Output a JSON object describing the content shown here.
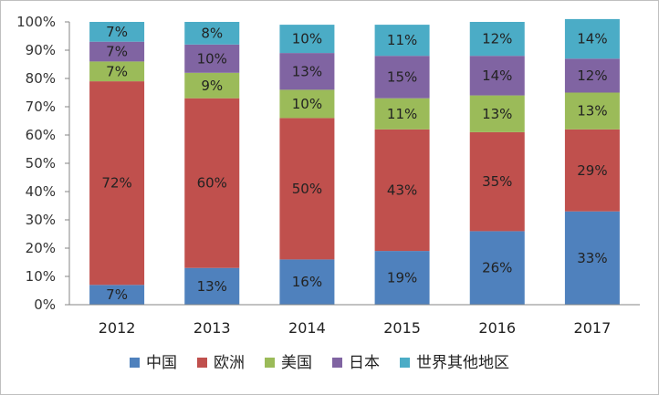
{
  "chart_data": {
    "type": "bar",
    "stacked": true,
    "percent": true,
    "categories": [
      "2012",
      "2013",
      "2014",
      "2015",
      "2016",
      "2017"
    ],
    "series": [
      {
        "name": "中国",
        "color": "#4f81bd",
        "values": [
          7,
          13,
          16,
          19,
          26,
          33
        ]
      },
      {
        "name": "欧洲",
        "color": "#c0504d",
        "values": [
          72,
          60,
          50,
          43,
          35,
          29
        ]
      },
      {
        "name": "美国",
        "color": "#9bbb59",
        "values": [
          7,
          9,
          10,
          11,
          13,
          13
        ]
      },
      {
        "name": "日本",
        "color": "#8064a2",
        "values": [
          7,
          10,
          13,
          15,
          14,
          12
        ]
      },
      {
        "name": "世界其他地区",
        "color": "#4bacc6",
        "values": [
          7,
          8,
          10,
          11,
          12,
          14
        ]
      }
    ],
    "y_ticks": [
      "0%",
      "10%",
      "20%",
      "30%",
      "40%",
      "50%",
      "60%",
      "70%",
      "80%",
      "90%",
      "100%"
    ],
    "ylim": [
      0,
      100
    ],
    "grid": false,
    "legend_position": "bottom"
  }
}
